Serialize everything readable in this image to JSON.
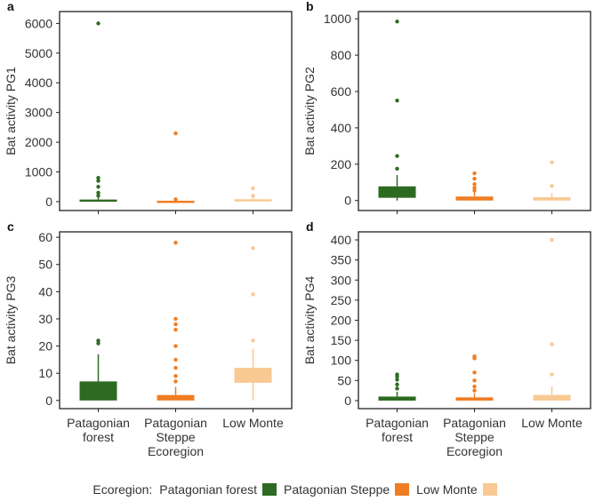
{
  "colors": {
    "Patagonian forest": "#2e6b22",
    "Patagonian Steppe": "#f07d22",
    "Low Monte": "#f8c993",
    "axis": "#222222",
    "text": "#333333"
  },
  "chart_data": [
    {
      "type": "box",
      "panel_label": "a",
      "ylabel": "Bat activity PG1",
      "ylim": [
        -300,
        6400
      ],
      "yticks": [
        0,
        1000,
        2000,
        3000,
        4000,
        5000,
        6000
      ],
      "categories": [
        "Patagonian forest",
        "Patagonian Steppe",
        "Low Monte"
      ],
      "boxes": [
        {
          "name": "Patagonian forest",
          "q1": 0,
          "median": 20,
          "q3": 70,
          "whisker_low": 0,
          "whisker_high": 160,
          "outliers": [
            200,
            300,
            500,
            700,
            800,
            6000
          ]
        },
        {
          "name": "Patagonian Steppe",
          "q1": 0,
          "median": 5,
          "q3": 30,
          "whisker_low": 0,
          "whisker_high": 60,
          "outliers": [
            80,
            2300
          ]
        },
        {
          "name": "Low Monte",
          "q1": 10,
          "median": 40,
          "q3": 80,
          "whisker_low": 0,
          "whisker_high": 150,
          "outliers": [
            200,
            450
          ]
        }
      ]
    },
    {
      "type": "box",
      "panel_label": "b",
      "ylabel": "Bat activity PG2",
      "ylim": [
        -55,
        1040
      ],
      "yticks": [
        0,
        200,
        400,
        600,
        800,
        1000
      ],
      "categories": [
        "Patagonian forest",
        "Patagonian Steppe",
        "Low Monte"
      ],
      "boxes": [
        {
          "name": "Patagonian forest",
          "q1": 15,
          "median": 40,
          "q3": 78,
          "whisker_low": 0,
          "whisker_high": 140,
          "outliers": [
            175,
            245,
            550,
            985
          ]
        },
        {
          "name": "Patagonian Steppe",
          "q1": 0,
          "median": 5,
          "q3": 22,
          "whisker_low": 0,
          "whisker_high": 45,
          "outliers": [
            55,
            70,
            90,
            120,
            150
          ]
        },
        {
          "name": "Low Monte",
          "q1": 0,
          "median": 5,
          "q3": 18,
          "whisker_low": 0,
          "whisker_high": 40,
          "outliers": [
            80,
            210
          ]
        }
      ]
    },
    {
      "type": "box",
      "panel_label": "c",
      "ylabel": "Bat activity PG3",
      "ylim": [
        -3,
        62
      ],
      "yticks": [
        0,
        10,
        20,
        30,
        40,
        50,
        60
      ],
      "categories": [
        "Patagonian forest",
        "Patagonian Steppe",
        "Low Monte"
      ],
      "xtick_labels": [
        [
          "Patagonian",
          "forest"
        ],
        [
          "Patagonian",
          "Steppe",
          "Ecoregion"
        ],
        [
          "Low Monte"
        ]
      ],
      "boxes": [
        {
          "name": "Patagonian forest",
          "q1": 0,
          "median": 3,
          "q3": 7,
          "whisker_low": 0,
          "whisker_high": 17,
          "outliers": [
            21,
            22
          ]
        },
        {
          "name": "Patagonian Steppe",
          "q1": 0,
          "median": 0.5,
          "q3": 2,
          "whisker_low": 0,
          "whisker_high": 5,
          "outliers": [
            7,
            9,
            12,
            15,
            20,
            26,
            28,
            30,
            58
          ]
        },
        {
          "name": "Low Monte",
          "q1": 6.5,
          "median": 9,
          "q3": 12,
          "whisker_low": 0,
          "whisker_high": 19,
          "outliers": [
            22,
            39,
            56
          ]
        }
      ]
    },
    {
      "type": "box",
      "panel_label": "d",
      "ylabel": "Bat activity PG4",
      "ylim": [
        -20,
        420
      ],
      "yticks": [
        0,
        50,
        100,
        150,
        200,
        250,
        300,
        350,
        400
      ],
      "categories": [
        "Patagonian forest",
        "Patagonian Steppe",
        "Low Monte"
      ],
      "xtick_labels": [
        [
          "Patagonian",
          "forest"
        ],
        [
          "Patagonian",
          "Steppe",
          "Ecoregion"
        ],
        [
          "Low Monte"
        ]
      ],
      "boxes": [
        {
          "name": "Patagonian forest",
          "q1": 0,
          "median": 2,
          "q3": 10,
          "whisker_low": 0,
          "whisker_high": 22,
          "outliers": [
            30,
            40,
            52,
            60,
            65
          ]
        },
        {
          "name": "Patagonian Steppe",
          "q1": 0,
          "median": 2,
          "q3": 8,
          "whisker_low": 0,
          "whisker_high": 18,
          "outliers": [
            25,
            35,
            50,
            70,
            105,
            110
          ]
        },
        {
          "name": "Low Monte",
          "q1": 0,
          "median": 3,
          "q3": 14,
          "whisker_low": 0,
          "whisker_high": 35,
          "outliers": [
            65,
            140,
            400
          ]
        }
      ]
    }
  ],
  "legend": {
    "title": "Ecoregion:",
    "entries": [
      "Patagonian forest",
      "Patagonian Steppe",
      "Low Monte"
    ]
  }
}
